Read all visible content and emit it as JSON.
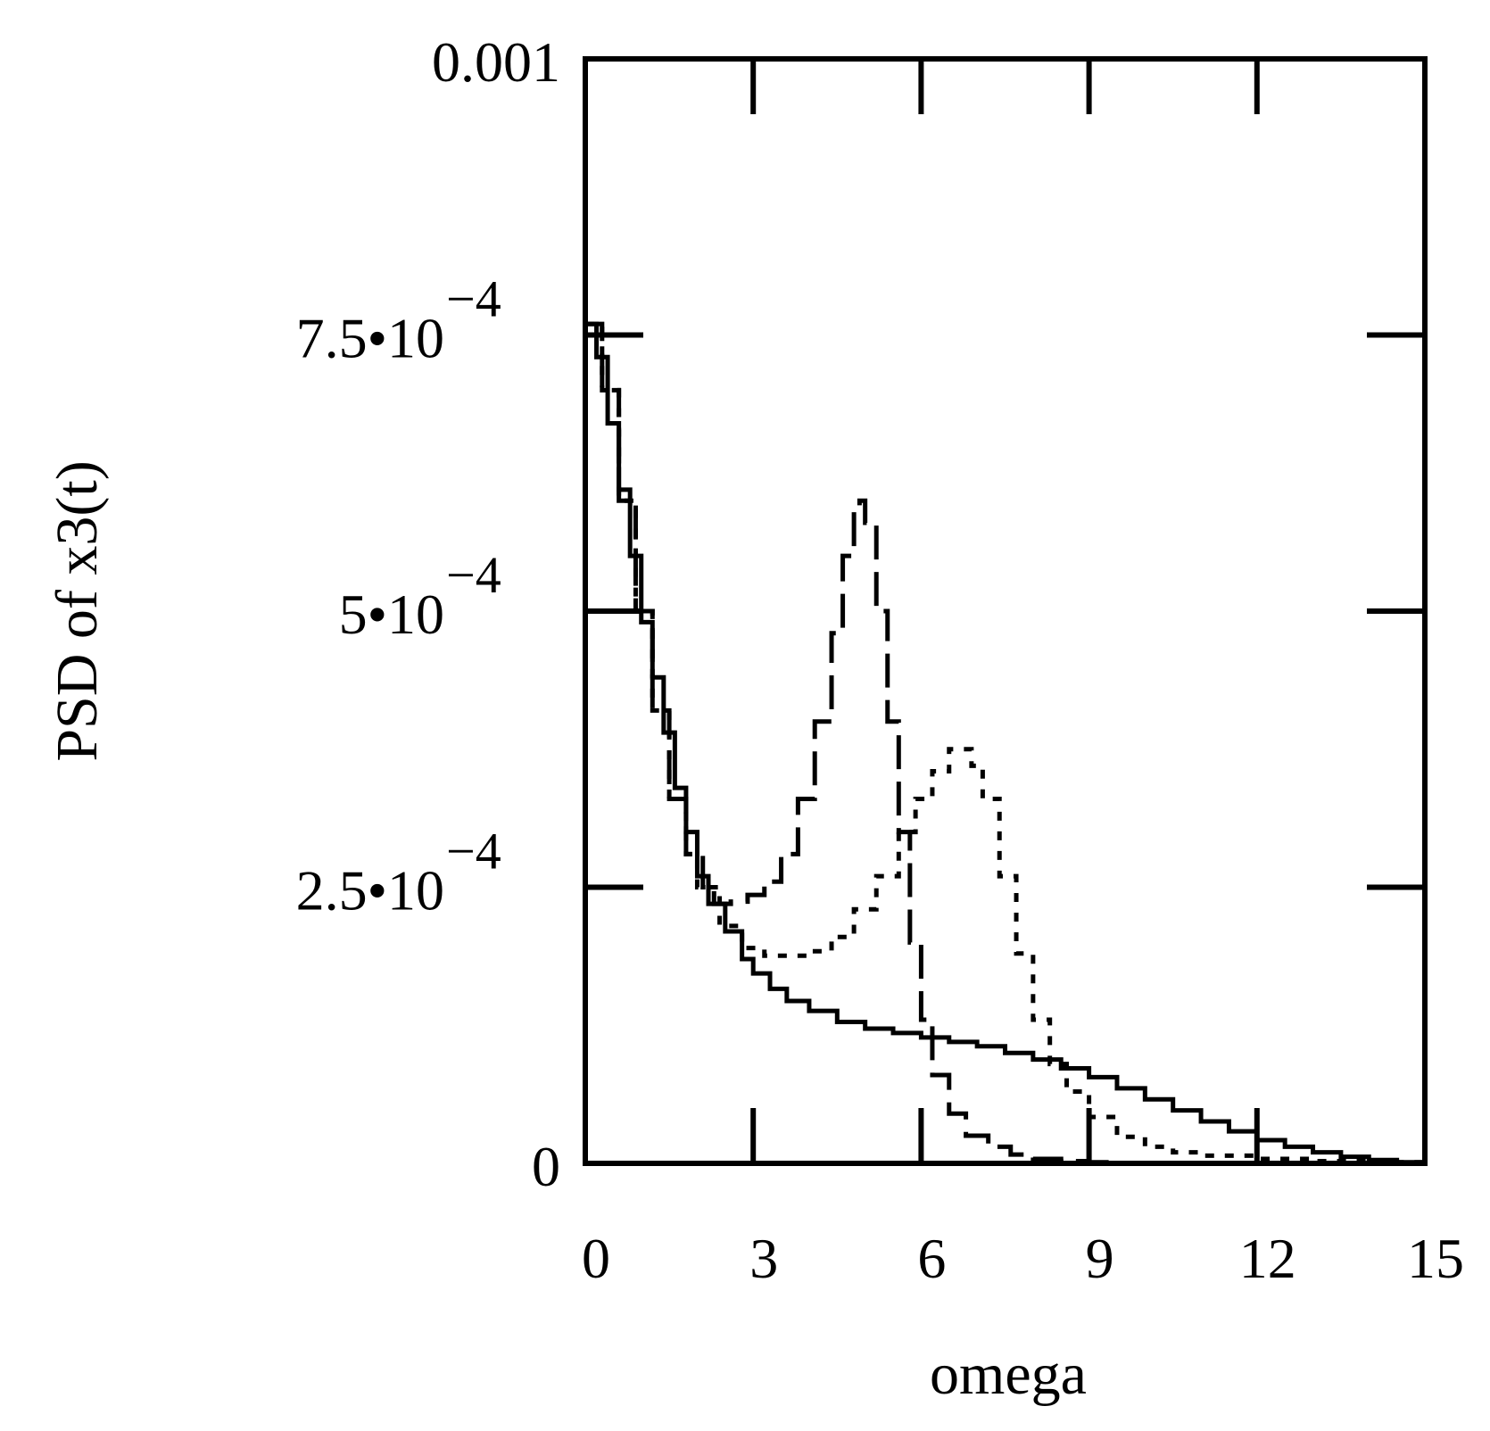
{
  "chart_data": {
    "type": "line",
    "title": "",
    "xlabel": "omega",
    "ylabel": "PSD of x3(t)",
    "xlim": [
      0,
      15
    ],
    "ylim": [
      0,
      0.001
    ],
    "x_ticks": [
      {
        "value": 0,
        "label": "0"
      },
      {
        "value": 3,
        "label": "3"
      },
      {
        "value": 6,
        "label": "6"
      },
      {
        "value": 9,
        "label": "9"
      },
      {
        "value": 12,
        "label": "12"
      },
      {
        "value": 15,
        "label": "15"
      }
    ],
    "y_ticks": [
      {
        "value": 0,
        "mantissa": "0",
        "exponent": ""
      },
      {
        "value": 0.00025,
        "mantissa": "2.5•10",
        "exponent": "−4"
      },
      {
        "value": 0.0005,
        "mantissa": "5•10",
        "exponent": "−4"
      },
      {
        "value": 0.00075,
        "mantissa": "7.5•10",
        "exponent": "−4"
      },
      {
        "value": 0.001,
        "mantissa": "0.001",
        "exponent": ""
      }
    ],
    "grid": false,
    "series": [
      {
        "name": "solid",
        "style": "solid",
        "x": [
          0,
          0.2,
          0.4,
          0.6,
          0.8,
          1.0,
          1.2,
          1.4,
          1.6,
          1.8,
          2.0,
          2.2,
          2.5,
          2.8,
          3.0,
          3.3,
          3.6,
          4.0,
          4.5,
          5.0,
          5.5,
          6.0,
          6.5,
          7.0,
          7.5,
          8.0,
          8.5,
          9.0,
          9.5,
          10.0,
          10.5,
          11.0,
          11.5,
          12.0,
          12.5,
          13.0,
          13.5,
          14.0,
          14.5,
          15.0
        ],
        "y": [
          0.00076,
          0.00073,
          0.00067,
          0.00061,
          0.00055,
          0.00049,
          0.00044,
          0.00039,
          0.00034,
          0.0003,
          0.00026,
          0.000235,
          0.00021,
          0.000185,
          0.000172,
          0.000158,
          0.000147,
          0.000138,
          0.000128,
          0.000122,
          0.000118,
          0.000114,
          0.00011,
          0.000106,
          0.0001,
          9.4e-05,
          8.6e-05,
          7.8e-05,
          6.8e-05,
          5.8e-05,
          4.8e-05,
          3.8e-05,
          2.9e-05,
          2.1e-05,
          1.5e-05,
          1e-05,
          6e-06,
          3e-06,
          1e-06,
          0
        ]
      },
      {
        "name": "dash",
        "style": "dash",
        "x": [
          0,
          0.3,
          0.6,
          0.9,
          1.2,
          1.5,
          1.8,
          2.1,
          2.3,
          2.6,
          2.9,
          3.2,
          3.5,
          3.8,
          4.1,
          4.4,
          4.6,
          4.8,
          4.9,
          5.0,
          5.2,
          5.4,
          5.6,
          5.8,
          6.0,
          6.2,
          6.5,
          6.8,
          7.2,
          7.6,
          8.0,
          8.5,
          9.0,
          9.5,
          10.0
        ],
        "y": [
          0.00076,
          0.0007,
          0.0006,
          0.0005,
          0.00041,
          0.00033,
          0.00028,
          0.00025,
          0.000235,
          0.000237,
          0.000243,
          0.000255,
          0.00028,
          0.00033,
          0.0004,
          0.00048,
          0.00055,
          0.00059,
          0.0006,
          0.00058,
          0.0005,
          0.0004,
          0.0003,
          0.0002,
          0.00013,
          8e-05,
          4.5e-05,
          2.5e-05,
          1.5e-05,
          8e-06,
          4e-06,
          2e-06,
          1e-06,
          0,
          0
        ]
      },
      {
        "name": "dot",
        "style": "dot",
        "x": [
          0,
          0.3,
          0.6,
          0.9,
          1.2,
          1.5,
          1.8,
          2.0,
          2.4,
          2.8,
          3.2,
          3.6,
          4.0,
          4.4,
          4.8,
          5.2,
          5.6,
          5.9,
          6.2,
          6.5,
          6.7,
          6.9,
          7.1,
          7.4,
          7.7,
          8.0,
          8.3,
          8.6,
          9.0,
          9.5,
          10.0,
          10.5,
          11.0,
          12.0,
          13.0,
          14.0,
          15.0
        ],
        "y": [
          0.00076,
          0.0007,
          0.0006,
          0.0005,
          0.00041,
          0.00033,
          0.00028,
          0.00025,
          0.000215,
          0.000195,
          0.000188,
          0.000188,
          0.000192,
          0.000205,
          0.00023,
          0.00026,
          0.0003,
          0.00033,
          0.000355,
          0.000375,
          0.000375,
          0.00036,
          0.00033,
          0.00026,
          0.00019,
          0.00013,
          9e-05,
          6.5e-05,
          4.2e-05,
          2.4e-05,
          1.5e-05,
          1e-05,
          7e-06,
          4e-06,
          2e-06,
          1e-06,
          0
        ]
      }
    ]
  }
}
